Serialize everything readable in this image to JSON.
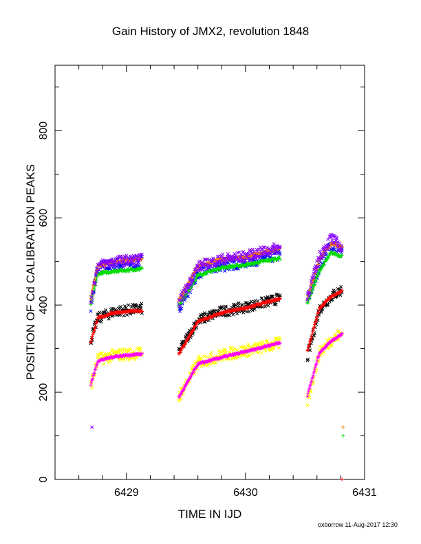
{
  "title": "Gain History of JMX2, revolution 1848",
  "footer": "oxborrow 11-Aug-2017 12:30",
  "chart_data": {
    "type": "scatter",
    "title": "Gain History of JMX2, revolution 1848",
    "xlabel": "TIME IN IJD",
    "ylabel": "POSITION OF Cd CALIBRATION PEAKS",
    "xlim": [
      6428.4,
      6431.0
    ],
    "ylim": [
      0,
      950
    ],
    "xticks": [
      6429,
      6430,
      6431
    ],
    "xtick_labels": [
      "6429",
      "6430",
      "6431"
    ],
    "yticks": [
      0,
      200,
      400,
      600,
      800
    ],
    "ytick_labels": [
      "0",
      "200",
      "400",
      "600",
      "800"
    ],
    "x_minor_step": 0.2,
    "y_minor_step": 100,
    "grid": false,
    "segments": [
      {
        "x0": 6428.7,
        "x1": 6429.13
      },
      {
        "x0": 6429.44,
        "x1": 6430.29
      },
      {
        "x0": 6430.52,
        "x1": 6430.81
      }
    ],
    "series": [
      {
        "color": "#0000ff",
        "marker": "x",
        "trend": [
          [
            6428.7,
            400
          ],
          [
            6428.76,
            485
          ],
          [
            6428.9,
            492
          ],
          [
            6429.13,
            500
          ],
          [
            6429.44,
            395
          ],
          [
            6429.6,
            475
          ],
          [
            6429.8,
            490
          ],
          [
            6430.0,
            500
          ],
          [
            6430.29,
            515
          ],
          [
            6430.52,
            410
          ],
          [
            6430.62,
            490
          ],
          [
            6430.72,
            540
          ],
          [
            6430.81,
            520
          ]
        ],
        "scatter": 14
      },
      {
        "color": "#ff7f00",
        "marker": "+",
        "trend": [
          [
            6428.7,
            415
          ],
          [
            6428.76,
            490
          ],
          [
            6428.9,
            500
          ],
          [
            6429.13,
            505
          ],
          [
            6429.44,
            410
          ],
          [
            6429.6,
            490
          ],
          [
            6429.8,
            505
          ],
          [
            6430.0,
            510
          ],
          [
            6430.29,
            530
          ],
          [
            6430.52,
            415
          ],
          [
            6430.62,
            505
          ],
          [
            6430.72,
            542
          ],
          [
            6430.81,
            532
          ]
        ],
        "scatter": 3,
        "outliers": [
          [
            6430.82,
            120
          ]
        ]
      },
      {
        "color": "#00dd00",
        "marker": "+",
        "trend": [
          [
            6428.7,
            400
          ],
          [
            6428.76,
            472
          ],
          [
            6428.9,
            478
          ],
          [
            6429.13,
            483
          ],
          [
            6429.44,
            398
          ],
          [
            6429.6,
            468
          ],
          [
            6429.8,
            486
          ],
          [
            6430.0,
            492
          ],
          [
            6430.29,
            508
          ],
          [
            6430.52,
            405
          ],
          [
            6430.62,
            478
          ],
          [
            6430.72,
            520
          ],
          [
            6430.81,
            512
          ]
        ],
        "scatter": 3,
        "outliers": [
          [
            6430.82,
            100
          ]
        ]
      },
      {
        "color": "#000000",
        "marker": "x",
        "trend": [
          [
            6428.7,
            320
          ],
          [
            6428.76,
            370
          ],
          [
            6428.9,
            385
          ],
          [
            6429.13,
            392
          ],
          [
            6429.44,
            292
          ],
          [
            6429.6,
            365
          ],
          [
            6429.8,
            385
          ],
          [
            6430.0,
            395
          ],
          [
            6430.29,
            415
          ],
          [
            6430.52,
            280
          ],
          [
            6430.62,
            390
          ],
          [
            6430.72,
            420
          ],
          [
            6430.81,
            435
          ]
        ],
        "scatter": 12
      },
      {
        "color": "#ff0000",
        "marker": "+",
        "trend": [
          [
            6428.7,
            315
          ],
          [
            6428.76,
            370
          ],
          [
            6428.9,
            383
          ],
          [
            6429.13,
            387
          ],
          [
            6429.44,
            288
          ],
          [
            6429.6,
            362
          ],
          [
            6429.8,
            382
          ],
          [
            6430.0,
            393
          ],
          [
            6430.29,
            415
          ],
          [
            6430.52,
            295
          ],
          [
            6430.62,
            392
          ],
          [
            6430.72,
            420
          ],
          [
            6430.81,
            432
          ]
        ],
        "scatter": 2,
        "outliers": [
          [
            6430.81,
            0
          ]
        ]
      },
      {
        "color": "#ffff00",
        "marker": "x",
        "trend": [
          [
            6428.7,
            215
          ],
          [
            6428.76,
            275
          ],
          [
            6428.9,
            285
          ],
          [
            6429.13,
            290
          ],
          [
            6429.44,
            190
          ],
          [
            6429.6,
            268
          ],
          [
            6429.8,
            285
          ],
          [
            6430.0,
            295
          ],
          [
            6430.29,
            312
          ],
          [
            6430.52,
            180
          ],
          [
            6430.62,
            290
          ],
          [
            6430.72,
            320
          ],
          [
            6430.81,
            335
          ]
        ],
        "scatter": 14
      },
      {
        "color": "#ff00ff",
        "marker": "+",
        "trend": [
          [
            6428.7,
            218
          ],
          [
            6428.76,
            272
          ],
          [
            6428.9,
            282
          ],
          [
            6429.13,
            288
          ],
          [
            6429.44,
            188
          ],
          [
            6429.6,
            265
          ],
          [
            6429.8,
            280
          ],
          [
            6430.0,
            293
          ],
          [
            6430.29,
            314
          ],
          [
            6430.52,
            192
          ],
          [
            6430.62,
            290
          ],
          [
            6430.72,
            318
          ],
          [
            6430.81,
            333
          ]
        ],
        "scatter": 2
      },
      {
        "color": "#8800ff",
        "marker": "x",
        "trend": [
          [
            6428.7,
            410
          ],
          [
            6428.76,
            490
          ],
          [
            6428.9,
            500
          ],
          [
            6429.13,
            505
          ],
          [
            6429.44,
            405
          ],
          [
            6429.6,
            488
          ],
          [
            6429.8,
            505
          ],
          [
            6430.0,
            512
          ],
          [
            6430.29,
            532
          ],
          [
            6430.52,
            420
          ],
          [
            6430.62,
            510
          ],
          [
            6430.72,
            555
          ],
          [
            6430.81,
            530
          ]
        ],
        "scatter": 12,
        "outliers": [
          [
            6428.71,
            120
          ]
        ]
      }
    ]
  }
}
